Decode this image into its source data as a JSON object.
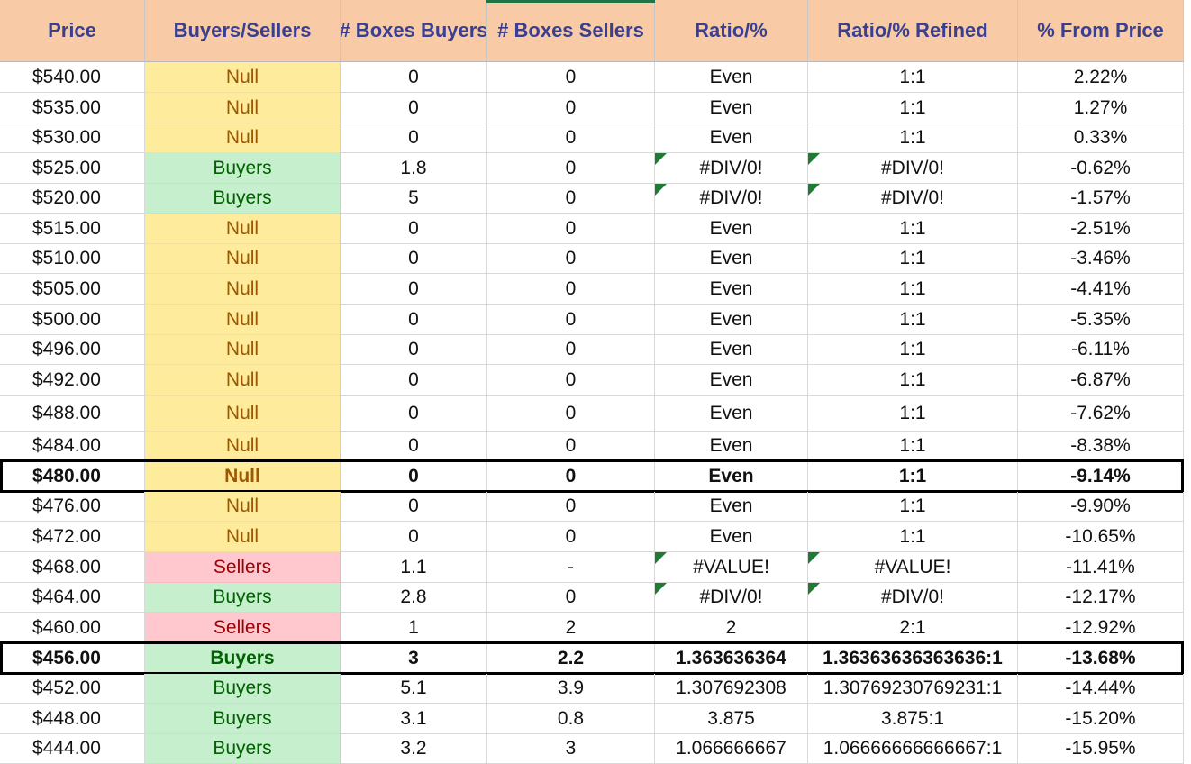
{
  "headers": [
    "Price",
    "Buyers/Sellers",
    "# Boxes Buyers",
    "# Boxes Sellers",
    "Ratio/%",
    "Ratio/% Refined",
    "% From Price"
  ],
  "rows": [
    {
      "price": "$540.00",
      "status": "Null",
      "buyers": "0",
      "sellers": "0",
      "ratio": "Even",
      "refined": "1:1",
      "pct": "2.22%"
    },
    {
      "price": "$535.00",
      "status": "Null",
      "buyers": "0",
      "sellers": "0",
      "ratio": "Even",
      "refined": "1:1",
      "pct": "1.27%"
    },
    {
      "price": "$530.00",
      "status": "Null",
      "buyers": "0",
      "sellers": "0",
      "ratio": "Even",
      "refined": "1:1",
      "pct": "0.33%"
    },
    {
      "price": "$525.00",
      "status": "Buyers",
      "buyers": "1.8",
      "sellers": "0",
      "ratio": "#DIV/0!",
      "refined": "#DIV/0!",
      "pct": "-0.62%",
      "error": true
    },
    {
      "price": "$520.00",
      "status": "Buyers",
      "buyers": "5",
      "sellers": "0",
      "ratio": "#DIV/0!",
      "refined": "#DIV/0!",
      "pct": "-1.57%",
      "error": true
    },
    {
      "price": "$515.00",
      "status": "Null",
      "buyers": "0",
      "sellers": "0",
      "ratio": "Even",
      "refined": "1:1",
      "pct": "-2.51%"
    },
    {
      "price": "$510.00",
      "status": "Null",
      "buyers": "0",
      "sellers": "0",
      "ratio": "Even",
      "refined": "1:1",
      "pct": "-3.46%"
    },
    {
      "price": "$505.00",
      "status": "Null",
      "buyers": "0",
      "sellers": "0",
      "ratio": "Even",
      "refined": "1:1",
      "pct": "-4.41%"
    },
    {
      "price": "$500.00",
      "status": "Null",
      "buyers": "0",
      "sellers": "0",
      "ratio": "Even",
      "refined": "1:1",
      "pct": "-5.35%"
    },
    {
      "price": "$496.00",
      "status": "Null",
      "buyers": "0",
      "sellers": "0",
      "ratio": "Even",
      "refined": "1:1",
      "pct": "-6.11%"
    },
    {
      "price": "$492.00",
      "status": "Null",
      "buyers": "0",
      "sellers": "0",
      "ratio": "Even",
      "refined": "1:1",
      "pct": "-6.87%"
    },
    {
      "price": "$488.00",
      "status": "Null",
      "buyers": "0",
      "sellers": "0",
      "ratio": "Even",
      "refined": "1:1",
      "pct": "-7.62%"
    },
    {
      "price": "$484.00",
      "status": "Null",
      "buyers": "0",
      "sellers": "0",
      "ratio": "Even",
      "refined": "1:1",
      "pct": "-8.38%"
    },
    {
      "price": "$480.00",
      "status": "Null",
      "buyers": "0",
      "sellers": "0",
      "ratio": "Even",
      "refined": "1:1",
      "pct": "-9.14%",
      "highlight": true
    },
    {
      "price": "$476.00",
      "status": "Null",
      "buyers": "0",
      "sellers": "0",
      "ratio": "Even",
      "refined": "1:1",
      "pct": "-9.90%"
    },
    {
      "price": "$472.00",
      "status": "Null",
      "buyers": "0",
      "sellers": "0",
      "ratio": "Even",
      "refined": "1:1",
      "pct": "-10.65%"
    },
    {
      "price": "$468.00",
      "status": "Sellers",
      "buyers": "1.1",
      "sellers": "-",
      "ratio": "#VALUE!",
      "refined": "#VALUE!",
      "pct": "-11.41%",
      "error": true
    },
    {
      "price": "$464.00",
      "status": "Buyers",
      "buyers": "2.8",
      "sellers": "0",
      "ratio": "#DIV/0!",
      "refined": "#DIV/0!",
      "pct": "-12.17%",
      "error": true
    },
    {
      "price": "$460.00",
      "status": "Sellers",
      "buyers": "1",
      "sellers": "2",
      "ratio": "2",
      "refined": "2:1",
      "pct": "-12.92%"
    },
    {
      "price": "$456.00",
      "status": "Buyers",
      "buyers": "3",
      "sellers": "2.2",
      "ratio": "1.363636364",
      "refined": "1.36363636363636:1",
      "pct": "-13.68%",
      "highlight": true
    },
    {
      "price": "$452.00",
      "status": "Buyers",
      "buyers": "5.1",
      "sellers": "3.9",
      "ratio": "1.307692308",
      "refined": "1.30769230769231:1",
      "pct": "-14.44%"
    },
    {
      "price": "$448.00",
      "status": "Buyers",
      "buyers": "3.1",
      "sellers": "0.8",
      "ratio": "3.875",
      "refined": "3.875:1",
      "pct": "-15.20%"
    },
    {
      "price": "$444.00",
      "status": "Buyers",
      "buyers": "3.2",
      "sellers": "3",
      "ratio": "1.066666667",
      "refined": "1.06666666666667:1",
      "pct": "-15.95%"
    }
  ]
}
